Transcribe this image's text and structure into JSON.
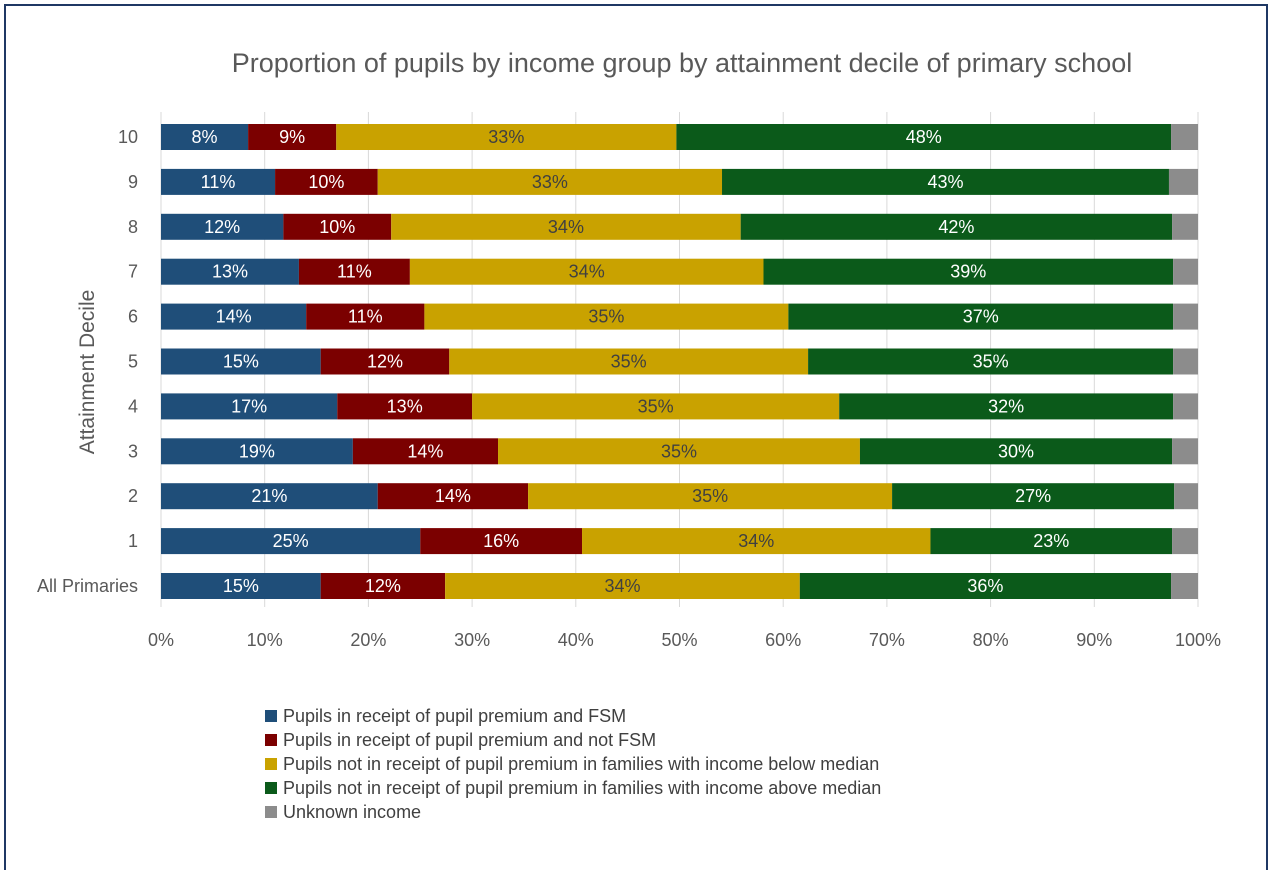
{
  "chart_data": {
    "type": "bar",
    "orientation": "horizontal",
    "stacked": true,
    "title": "Proportion of pupils by income group by attainment decile of primary school",
    "xlabel": "",
    "ylabel": "Attainment Decile",
    "xlim": [
      0,
      100
    ],
    "x_ticks": [
      "0%",
      "10%",
      "20%",
      "30%",
      "40%",
      "50%",
      "60%",
      "70%",
      "80%",
      "90%",
      "100%"
    ],
    "grid": true,
    "legend_position": "bottom",
    "categories": [
      "10",
      "9",
      "8",
      "7",
      "6",
      "5",
      "4",
      "3",
      "2",
      "1",
      "All Primaries"
    ],
    "series": [
      {
        "name": "Pupils in receipt of pupil premium and FSM",
        "color": "#1f4e79",
        "label_color": "#ffffff",
        "values": [
          8.4,
          11.0,
          11.8,
          13.3,
          14.0,
          15.4,
          17.0,
          18.5,
          20.9,
          25.0,
          15.4
        ],
        "labels": [
          "8%",
          "11%",
          "12%",
          "13%",
          "14%",
          "15%",
          "17%",
          "19%",
          "21%",
          "25%",
          "15%"
        ]
      },
      {
        "name": "Pupils in receipt of pupil premium and not FSM",
        "color": "#7b0000",
        "label_color": "#ffffff",
        "values": [
          8.5,
          9.9,
          10.4,
          10.7,
          11.4,
          12.4,
          13.0,
          14.0,
          14.5,
          15.6,
          12.0
        ],
        "labels": [
          "9%",
          "10%",
          "10%",
          "11%",
          "11%",
          "12%",
          "13%",
          "14%",
          "14%",
          "16%",
          "12%"
        ]
      },
      {
        "name": "Pupils not in receipt of pupil premium in families with income below median",
        "color": "#c9a200",
        "label_color": "#404040",
        "values": [
          32.8,
          33.2,
          33.7,
          34.1,
          35.1,
          34.6,
          35.4,
          34.9,
          35.1,
          33.6,
          34.2
        ],
        "labels": [
          "33%",
          "33%",
          "34%",
          "34%",
          "35%",
          "35%",
          "35%",
          "35%",
          "35%",
          "34%",
          "34%"
        ]
      },
      {
        "name": "Pupils not in receipt of pupil premium in families with income above median",
        "color": "#0b5a1a",
        "label_color": "#ffffff",
        "values": [
          47.7,
          43.1,
          41.6,
          39.5,
          37.1,
          35.2,
          32.2,
          30.1,
          27.2,
          23.3,
          35.8
        ],
        "labels": [
          "48%",
          "43%",
          "42%",
          "39%",
          "37%",
          "35%",
          "32%",
          "30%",
          "27%",
          "23%",
          "36%"
        ]
      },
      {
        "name": "Unknown income",
        "color": "#8c8c8c",
        "label_color": "#ffffff",
        "values": [
          2.6,
          2.8,
          2.5,
          2.4,
          2.4,
          2.4,
          2.4,
          2.5,
          2.3,
          2.5,
          2.6
        ],
        "labels": [
          "",
          "",
          "",
          "",
          "",
          "",
          "",
          "",
          "",
          "",
          ""
        ]
      }
    ]
  }
}
